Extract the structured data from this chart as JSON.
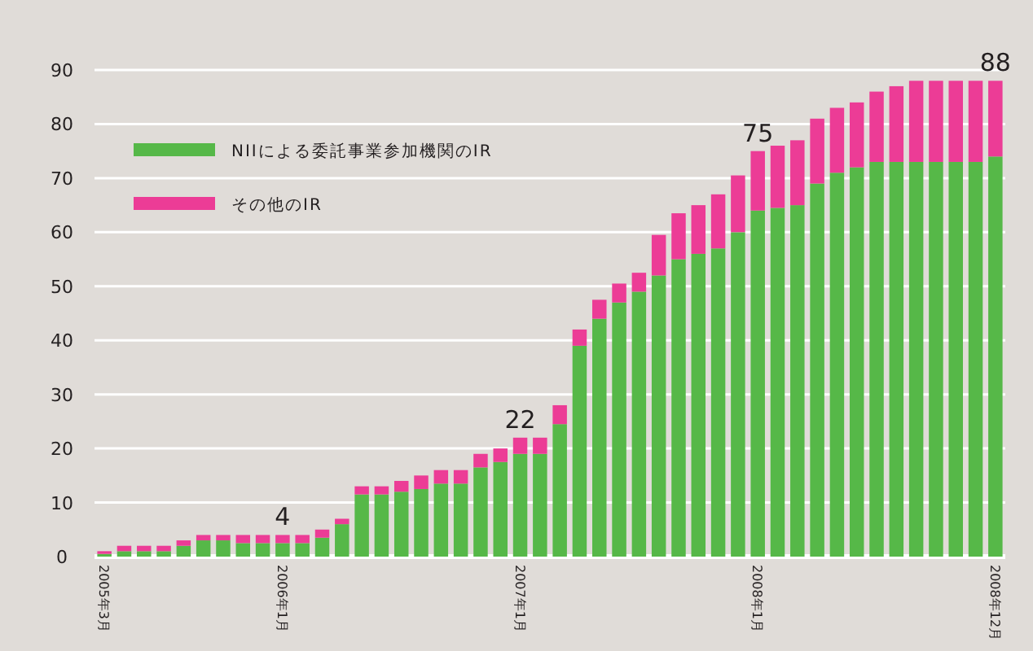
{
  "chart_data": {
    "type": "bar",
    "stacked": true,
    "grid": "y",
    "legend": "top left",
    "categories": [
      "2005年3月",
      null,
      null,
      null,
      null,
      null,
      null,
      null,
      null,
      "2006年1月",
      null,
      null,
      null,
      null,
      null,
      null,
      null,
      null,
      null,
      null,
      null,
      "2007年1月",
      null,
      null,
      null,
      null,
      null,
      null,
      null,
      null,
      null,
      null,
      null,
      "2008年1月",
      null,
      null,
      null,
      null,
      null,
      null,
      null,
      null,
      null,
      null,
      null,
      "2008年12月"
    ],
    "series": [
      {
        "name": "NIIによる委託事業参加機関のIR",
        "color": "#56b848",
        "values": [
          0.5,
          1,
          1,
          1,
          2,
          3,
          3,
          2.5,
          2.5,
          2.5,
          2.5,
          3.5,
          6,
          11.5,
          11.5,
          12,
          12.5,
          13.5,
          13.5,
          16.5,
          17.5,
          19,
          19,
          24.5,
          39,
          44,
          47,
          49,
          52,
          55,
          56,
          57,
          60,
          64,
          64.5,
          65,
          69,
          71,
          72,
          73,
          73,
          73,
          73,
          73,
          73,
          74
        ]
      },
      {
        "name": "その他のIR",
        "color": "#ec3c96",
        "values": [
          0.5,
          1,
          1,
          1,
          1,
          1,
          1,
          1.5,
          1.5,
          1.5,
          1.5,
          1.5,
          1,
          1.5,
          1.5,
          2,
          2.5,
          2.5,
          2.5,
          2.5,
          2.5,
          3,
          3,
          3.5,
          3,
          3.5,
          3.5,
          3.5,
          7.5,
          8.5,
          9,
          10,
          10.5,
          11,
          11.5,
          12,
          12,
          12,
          12,
          13,
          14,
          15,
          15,
          15,
          15,
          14
        ]
      }
    ],
    "totals": [
      null,
      null,
      null,
      null,
      null,
      null,
      null,
      null,
      null,
      "4",
      null,
      null,
      null,
      null,
      null,
      null,
      null,
      null,
      null,
      null,
      null,
      "22",
      null,
      null,
      null,
      null,
      null,
      null,
      null,
      null,
      null,
      null,
      null,
      "75",
      null,
      null,
      null,
      null,
      null,
      null,
      null,
      null,
      null,
      null,
      null,
      "88"
    ],
    "ylim": [
      0,
      90
    ],
    "yticks": [
      0,
      10,
      20,
      30,
      40,
      50,
      60,
      70,
      80,
      90
    ]
  }
}
